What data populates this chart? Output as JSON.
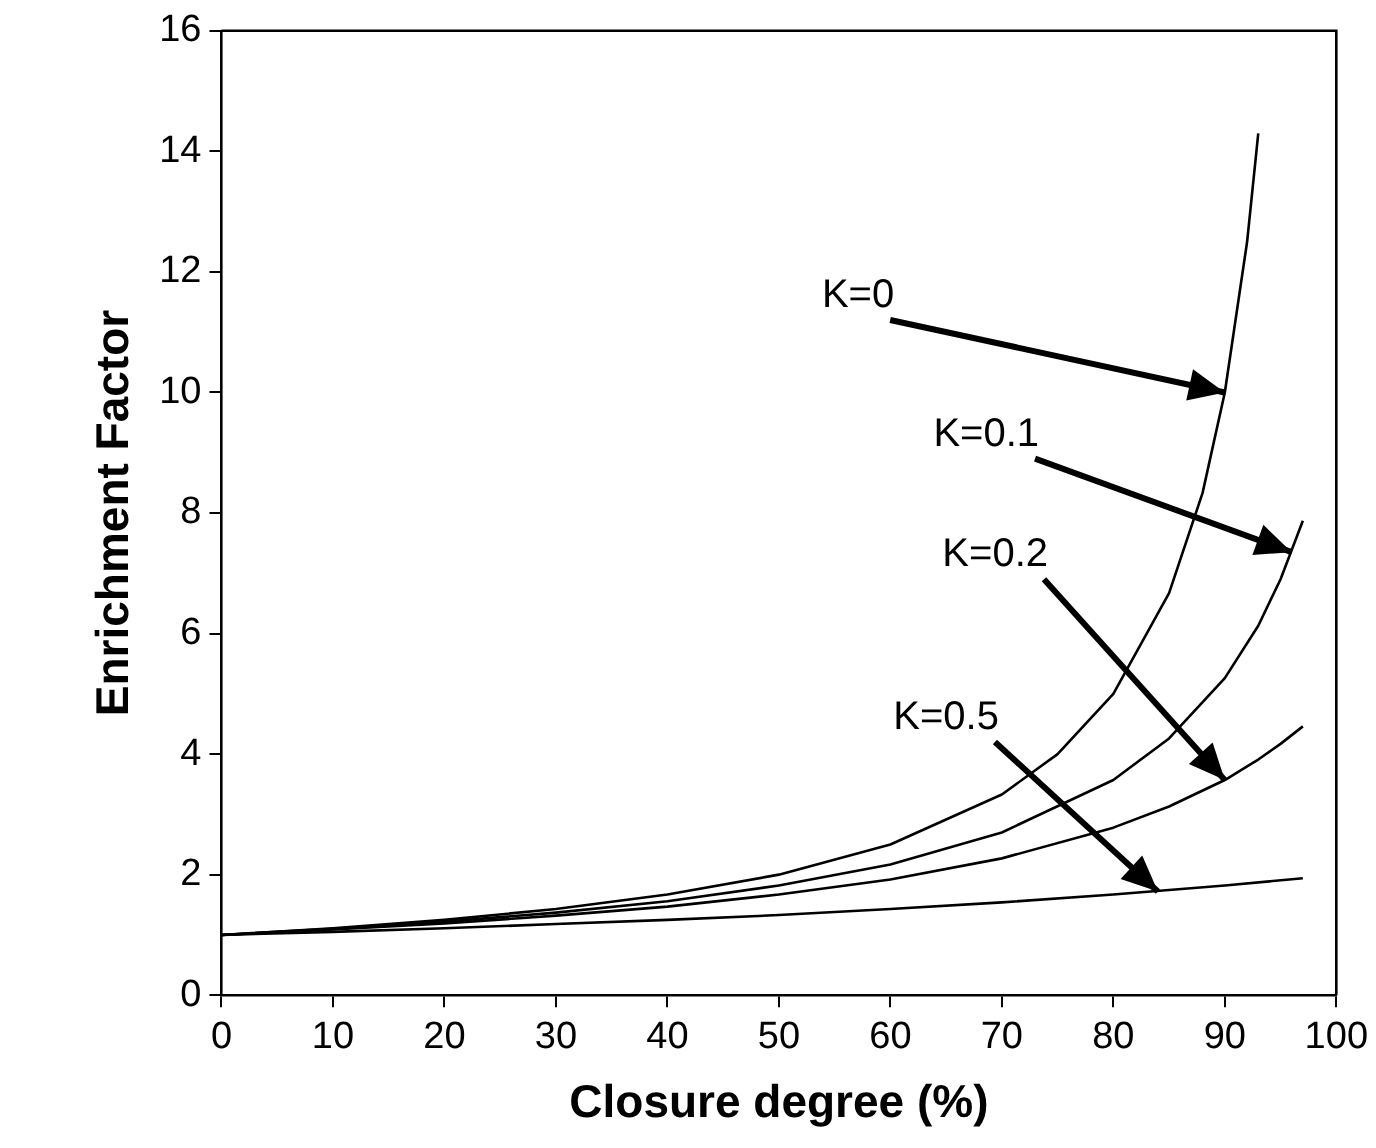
{
  "chart_data": {
    "type": "line",
    "xlabel": "Closure degree (%)",
    "ylabel": "Enrichment Factor",
    "xlim": [
      0,
      100
    ],
    "xticks": [
      0,
      10,
      20,
      30,
      40,
      50,
      60,
      70,
      80,
      90,
      100
    ],
    "ylim": [
      0,
      16
    ],
    "yticks": [
      0,
      2,
      4,
      6,
      8,
      10,
      12,
      14,
      16
    ],
    "grid": false,
    "legend": false,
    "marker": "none",
    "line_style": "solid",
    "series": [
      {
        "color": "#000000",
        "x": [
          0,
          10,
          20,
          30,
          40,
          50,
          60,
          70,
          75,
          80,
          85,
          88,
          90,
          92,
          93
        ],
        "values": [
          1,
          1.11,
          1.25,
          1.43,
          1.67,
          2,
          2.5,
          3.33,
          4,
          5,
          6.67,
          8.33,
          10,
          12.5,
          14.3
        ]
      },
      {
        "color": "#000000",
        "x": [
          0,
          10,
          20,
          30,
          40,
          50,
          60,
          70,
          80,
          85,
          90,
          93,
          95,
          97
        ],
        "values": [
          1,
          1.1,
          1.22,
          1.37,
          1.56,
          1.82,
          2.17,
          2.7,
          3.57,
          4.26,
          5.26,
          6.13,
          6.9,
          7.87
        ]
      },
      {
        "color": "#000000",
        "x": [
          0,
          10,
          20,
          30,
          40,
          50,
          60,
          70,
          80,
          85,
          90,
          93,
          95,
          97
        ],
        "values": [
          1,
          1.09,
          1.19,
          1.32,
          1.47,
          1.67,
          1.92,
          2.27,
          2.78,
          3.13,
          3.57,
          3.91,
          4.17,
          4.46
        ]
      },
      {
        "color": "#000000",
        "x": [
          0,
          10,
          20,
          30,
          40,
          50,
          60,
          70,
          80,
          90,
          97
        ],
        "values": [
          1,
          1.05,
          1.11,
          1.18,
          1.25,
          1.33,
          1.43,
          1.54,
          1.67,
          1.82,
          1.94
        ]
      }
    ],
    "annotations": [
      {
        "text": "K=0",
        "x": 90,
        "y": 10
      },
      {
        "text": "K=0.1",
        "x": 96,
        "y": 7.35
      },
      {
        "text": "K=0.2",
        "x": 90,
        "y": 3.57
      },
      {
        "text": "K=0.5",
        "x": 84,
        "y": 1.72
      }
    ]
  }
}
